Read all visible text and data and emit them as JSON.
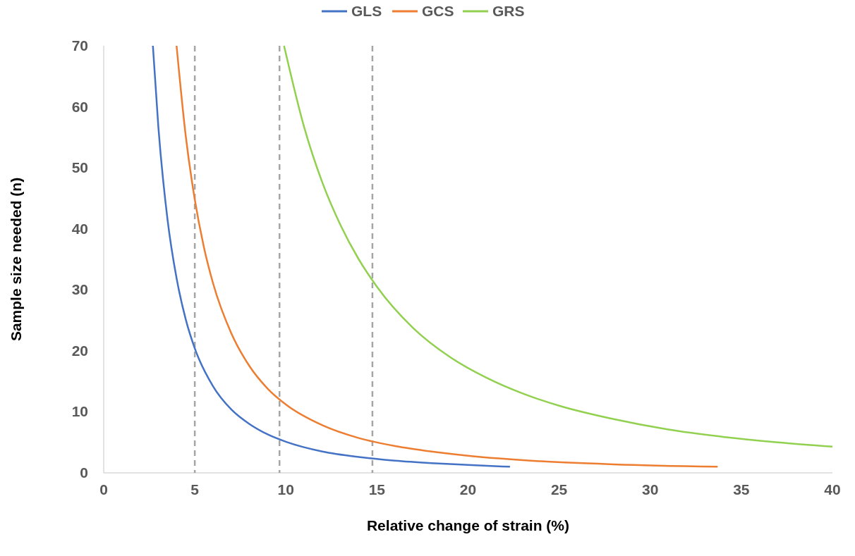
{
  "chart_data": {
    "type": "line",
    "xlabel": "Relative change of strain (%)",
    "ylabel": "Sample size needed (n)",
    "xlim": [
      0,
      40
    ],
    "xticks": [
      0,
      5,
      10,
      15,
      20,
      25,
      30,
      35,
      40
    ],
    "ylim": [
      0,
      70
    ],
    "yticks": [
      0,
      10,
      20,
      30,
      40,
      50,
      60,
      70
    ],
    "grid": false,
    "legend": "top",
    "marker": "none",
    "line_style": "solid",
    "series": [
      {
        "name": "GLS",
        "color": "#4472c4",
        "x": [
          2.7,
          3,
          3.5,
          4,
          4.5,
          5,
          6,
          7,
          8,
          9,
          10,
          12,
          14,
          16,
          18,
          20,
          22.3
        ],
        "values": [
          70,
          56.7,
          41.6,
          31.9,
          25.2,
          20.4,
          14.2,
          10.4,
          8.0,
          6.3,
          5.1,
          3.5,
          2.6,
          2.0,
          1.6,
          1.3,
          1.0
        ]
      },
      {
        "name": "GCS",
        "color": "#ed7d31",
        "x": [
          4.0,
          4.5,
          5,
          5.5,
          6,
          7,
          8,
          9,
          10,
          12,
          14,
          16,
          18,
          20,
          24,
          28,
          33.7
        ],
        "values": [
          70,
          55.3,
          44.8,
          37.0,
          31.1,
          22.9,
          17.5,
          13.8,
          11.2,
          7.8,
          5.7,
          4.4,
          3.5,
          2.8,
          1.9,
          1.4,
          1.0
        ]
      },
      {
        "name": "GRS",
        "color": "#92d050",
        "x": [
          9.9,
          11,
          12,
          13,
          14,
          15,
          17,
          19,
          21,
          23,
          25,
          28,
          31,
          34,
          37,
          40
        ],
        "values": [
          70,
          56.7,
          47.6,
          40.6,
          35.0,
          30.5,
          23.7,
          19.0,
          15.6,
          13.0,
          11.0,
          8.8,
          7.1,
          5.9,
          5.0,
          4.3
        ]
      }
    ],
    "ref_lines": [
      {
        "axis": "x",
        "value": 5,
        "color": "#a5a5a5",
        "line_style": "dashed"
      },
      {
        "axis": "x",
        "value": 9.65,
        "color": "#a5a5a5",
        "line_style": "dashed"
      },
      {
        "axis": "x",
        "value": 14.75,
        "color": "#a5a5a5",
        "line_style": "dashed"
      }
    ]
  }
}
